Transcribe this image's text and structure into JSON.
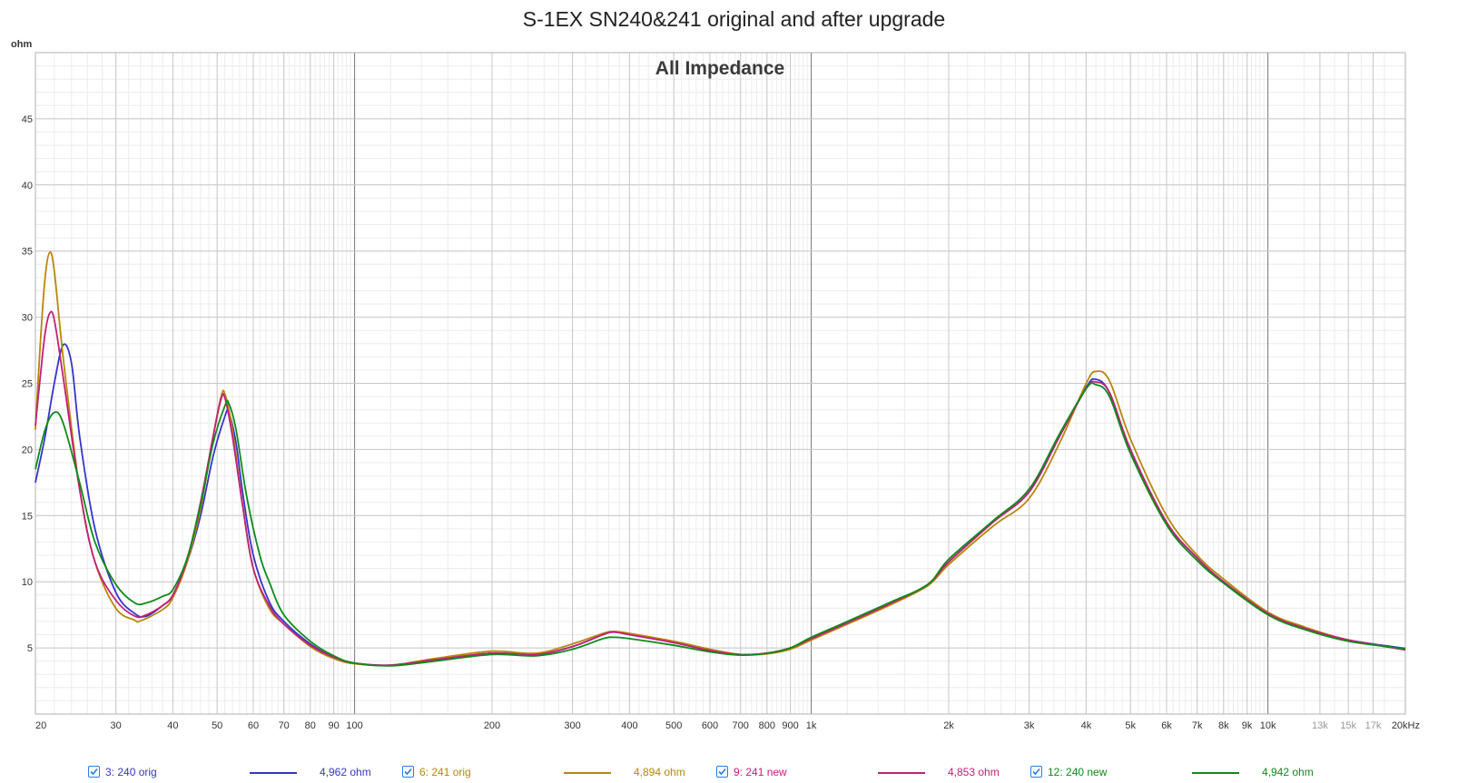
{
  "title": "S-1EX SN240&241 original and after upgrade",
  "chart_data": {
    "type": "line",
    "title": "All Impedance",
    "ylabel": "ohm",
    "xscale": "log",
    "xlim": [
      20,
      20000
    ],
    "ylim": [
      0,
      50
    ],
    "grid": true,
    "yticks": [
      5,
      10,
      15,
      20,
      25,
      30,
      35,
      40,
      45
    ],
    "xticks": [
      {
        "v": 20,
        "label": "20"
      },
      {
        "v": 30,
        "label": "30"
      },
      {
        "v": 40,
        "label": "40"
      },
      {
        "v": 50,
        "label": "50"
      },
      {
        "v": 60,
        "label": "60"
      },
      {
        "v": 70,
        "label": "70"
      },
      {
        "v": 80,
        "label": "80"
      },
      {
        "v": 90,
        "label": "90"
      },
      {
        "v": 100,
        "label": "100"
      },
      {
        "v": 200,
        "label": "200"
      },
      {
        "v": 300,
        "label": "300"
      },
      {
        "v": 400,
        "label": "400"
      },
      {
        "v": 500,
        "label": "500"
      },
      {
        "v": 600,
        "label": "600"
      },
      {
        "v": 700,
        "label": "700"
      },
      {
        "v": 800,
        "label": "800"
      },
      {
        "v": 900,
        "label": "900"
      },
      {
        "v": 1000,
        "label": "1k"
      },
      {
        "v": 2000,
        "label": "2k"
      },
      {
        "v": 3000,
        "label": "3k"
      },
      {
        "v": 4000,
        "label": "4k"
      },
      {
        "v": 5000,
        "label": "5k"
      },
      {
        "v": 6000,
        "label": "6k"
      },
      {
        "v": 7000,
        "label": "7k"
      },
      {
        "v": 8000,
        "label": "8k"
      },
      {
        "v": 9000,
        "label": "9k"
      },
      {
        "v": 10000,
        "label": "10k"
      },
      {
        "v": 13000,
        "label": "13k",
        "muted": true
      },
      {
        "v": 15000,
        "label": "15k",
        "muted": true
      },
      {
        "v": 17000,
        "label": "17k",
        "muted": true
      },
      {
        "v": 20000,
        "label": "20kHz"
      }
    ],
    "series": [
      {
        "name": "3: 240 orig",
        "value_label": "4,962 ohm",
        "color": "#3535c8",
        "points": [
          [
            20,
            17.5
          ],
          [
            21,
            21
          ],
          [
            22,
            25
          ],
          [
            23,
            27.9
          ],
          [
            24,
            26.5
          ],
          [
            25,
            21
          ],
          [
            27,
            14
          ],
          [
            30,
            9.2
          ],
          [
            33,
            7.6
          ],
          [
            35,
            7.4
          ],
          [
            38,
            8.2
          ],
          [
            40,
            9
          ],
          [
            43,
            11.5
          ],
          [
            46,
            15
          ],
          [
            49,
            19.5
          ],
          [
            52,
            22.5
          ],
          [
            53,
            22.8
          ],
          [
            55,
            20.5
          ],
          [
            57,
            16.5
          ],
          [
            60,
            12
          ],
          [
            65,
            8.5
          ],
          [
            70,
            7
          ],
          [
            80,
            5.3
          ],
          [
            90,
            4.3
          ],
          [
            100,
            3.85
          ],
          [
            120,
            3.7
          ],
          [
            150,
            4.1
          ],
          [
            200,
            4.6
          ],
          [
            250,
            4.5
          ],
          [
            300,
            5.1
          ],
          [
            350,
            6
          ],
          [
            370,
            6.2
          ],
          [
            400,
            6
          ],
          [
            500,
            5.4
          ],
          [
            600,
            4.8
          ],
          [
            700,
            4.5
          ],
          [
            800,
            4.6
          ],
          [
            900,
            5
          ],
          [
            1000,
            5.7
          ],
          [
            1200,
            6.9
          ],
          [
            1500,
            8.4
          ],
          [
            1800,
            9.8
          ],
          [
            2000,
            11.5
          ],
          [
            2500,
            14.5
          ],
          [
            3000,
            16.8
          ],
          [
            3500,
            21
          ],
          [
            4000,
            24.7
          ],
          [
            4200,
            25.3
          ],
          [
            4500,
            24.3
          ],
          [
            5000,
            20
          ],
          [
            6000,
            14.5
          ],
          [
            7000,
            11.8
          ],
          [
            8000,
            10
          ],
          [
            10000,
            7.6
          ],
          [
            12000,
            6.5
          ],
          [
            15000,
            5.6
          ],
          [
            20000,
            4.96
          ]
        ]
      },
      {
        "name": "6: 241 orig",
        "value_label": "4,894 ohm",
        "color": "#b8860b",
        "points": [
          [
            20,
            21.5
          ],
          [
            20.5,
            28
          ],
          [
            21,
            33
          ],
          [
            21.5,
            34.9
          ],
          [
            22,
            33.5
          ],
          [
            23,
            27
          ],
          [
            25,
            17
          ],
          [
            27,
            11.5
          ],
          [
            30,
            8
          ],
          [
            33,
            7.1
          ],
          [
            34,
            7.05
          ],
          [
            38,
            7.9
          ],
          [
            40,
            8.8
          ],
          [
            43,
            11.5
          ],
          [
            46,
            15.5
          ],
          [
            49,
            21
          ],
          [
            51,
            24
          ],
          [
            52,
            24.2
          ],
          [
            54,
            21.5
          ],
          [
            57,
            15.5
          ],
          [
            60,
            11
          ],
          [
            65,
            8
          ],
          [
            70,
            6.8
          ],
          [
            80,
            5.1
          ],
          [
            90,
            4.2
          ],
          [
            100,
            3.8
          ],
          [
            120,
            3.7
          ],
          [
            150,
            4.2
          ],
          [
            200,
            4.75
          ],
          [
            250,
            4.6
          ],
          [
            300,
            5.3
          ],
          [
            350,
            6.1
          ],
          [
            370,
            6.25
          ],
          [
            400,
            6.1
          ],
          [
            500,
            5.5
          ],
          [
            600,
            4.9
          ],
          [
            700,
            4.5
          ],
          [
            800,
            4.55
          ],
          [
            900,
            4.9
          ],
          [
            1000,
            5.6
          ],
          [
            1200,
            6.8
          ],
          [
            1500,
            8.3
          ],
          [
            1800,
            9.7
          ],
          [
            2000,
            11.3
          ],
          [
            2500,
            14.2
          ],
          [
            3000,
            16.3
          ],
          [
            3500,
            20.5
          ],
          [
            4000,
            25
          ],
          [
            4200,
            25.9
          ],
          [
            4500,
            25.2
          ],
          [
            5000,
            20.8
          ],
          [
            6000,
            15
          ],
          [
            7000,
            12
          ],
          [
            8000,
            10.2
          ],
          [
            10000,
            7.7
          ],
          [
            12000,
            6.6
          ],
          [
            15000,
            5.6
          ],
          [
            20000,
            4.89
          ]
        ]
      },
      {
        "name": "9: 241 new",
        "value_label": "4,853 ohm",
        "color": "#c0207a",
        "points": [
          [
            20,
            21.8
          ],
          [
            20.5,
            25.5
          ],
          [
            21,
            28.8
          ],
          [
            21.5,
            30.3
          ],
          [
            22,
            29.8
          ],
          [
            23,
            25.5
          ],
          [
            25,
            17
          ],
          [
            27,
            11.5
          ],
          [
            30,
            8.6
          ],
          [
            33,
            7.4
          ],
          [
            35,
            7.5
          ],
          [
            38,
            8.2
          ],
          [
            40,
            9
          ],
          [
            43,
            11.7
          ],
          [
            46,
            16
          ],
          [
            49,
            21
          ],
          [
            51,
            23.8
          ],
          [
            52,
            23.9
          ],
          [
            54,
            21
          ],
          [
            57,
            15.5
          ],
          [
            60,
            11
          ],
          [
            65,
            8.2
          ],
          [
            70,
            6.8
          ],
          [
            80,
            5.2
          ],
          [
            90,
            4.3
          ],
          [
            100,
            3.85
          ],
          [
            120,
            3.7
          ],
          [
            150,
            4.1
          ],
          [
            200,
            4.6
          ],
          [
            250,
            4.5
          ],
          [
            300,
            5.1
          ],
          [
            350,
            6
          ],
          [
            370,
            6.2
          ],
          [
            400,
            6
          ],
          [
            500,
            5.4
          ],
          [
            600,
            4.8
          ],
          [
            700,
            4.5
          ],
          [
            800,
            4.6
          ],
          [
            900,
            5
          ],
          [
            1000,
            5.7
          ],
          [
            1200,
            6.9
          ],
          [
            1500,
            8.4
          ],
          [
            1800,
            9.8
          ],
          [
            2000,
            11.5
          ],
          [
            2500,
            14.5
          ],
          [
            3000,
            16.8
          ],
          [
            3500,
            21
          ],
          [
            4000,
            24.6
          ],
          [
            4200,
            25.1
          ],
          [
            4500,
            24.3
          ],
          [
            5000,
            20
          ],
          [
            6000,
            14.5
          ],
          [
            7000,
            11.8
          ],
          [
            8000,
            10
          ],
          [
            10000,
            7.6
          ],
          [
            12000,
            6.5
          ],
          [
            15000,
            5.6
          ],
          [
            20000,
            4.85
          ]
        ]
      },
      {
        "name": "12: 240 new",
        "value_label": "4,942 ohm",
        "color": "#0f8a1a",
        "points": [
          [
            20,
            18.5
          ],
          [
            21,
            21.5
          ],
          [
            22,
            22.8
          ],
          [
            23,
            22
          ],
          [
            25,
            17.5
          ],
          [
            27,
            13
          ],
          [
            30,
            9.8
          ],
          [
            33,
            8.4
          ],
          [
            35,
            8.4
          ],
          [
            38,
            8.9
          ],
          [
            40,
            9.4
          ],
          [
            43,
            11.8
          ],
          [
            46,
            15.8
          ],
          [
            49,
            20.5
          ],
          [
            52,
            23.3
          ],
          [
            53,
            23.5
          ],
          [
            55,
            21.5
          ],
          [
            58,
            16.5
          ],
          [
            62,
            12
          ],
          [
            65,
            10
          ],
          [
            70,
            7.5
          ],
          [
            80,
            5.5
          ],
          [
            90,
            4.4
          ],
          [
            100,
            3.85
          ],
          [
            120,
            3.65
          ],
          [
            150,
            4
          ],
          [
            200,
            4.5
          ],
          [
            250,
            4.4
          ],
          [
            300,
            4.9
          ],
          [
            350,
            5.7
          ],
          [
            370,
            5.8
          ],
          [
            400,
            5.7
          ],
          [
            500,
            5.2
          ],
          [
            600,
            4.7
          ],
          [
            700,
            4.45
          ],
          [
            800,
            4.6
          ],
          [
            900,
            5
          ],
          [
            1000,
            5.8
          ],
          [
            1200,
            7
          ],
          [
            1500,
            8.5
          ],
          [
            1800,
            9.8
          ],
          [
            2000,
            11.7
          ],
          [
            2500,
            14.6
          ],
          [
            3000,
            17
          ],
          [
            3500,
            21.2
          ],
          [
            4000,
            24.6
          ],
          [
            4200,
            24.9
          ],
          [
            4500,
            24
          ],
          [
            5000,
            19.7
          ],
          [
            6000,
            14.3
          ],
          [
            7000,
            11.6
          ],
          [
            8000,
            9.9
          ],
          [
            10000,
            7.5
          ],
          [
            12000,
            6.4
          ],
          [
            15000,
            5.5
          ],
          [
            20000,
            4.94
          ]
        ]
      }
    ]
  }
}
